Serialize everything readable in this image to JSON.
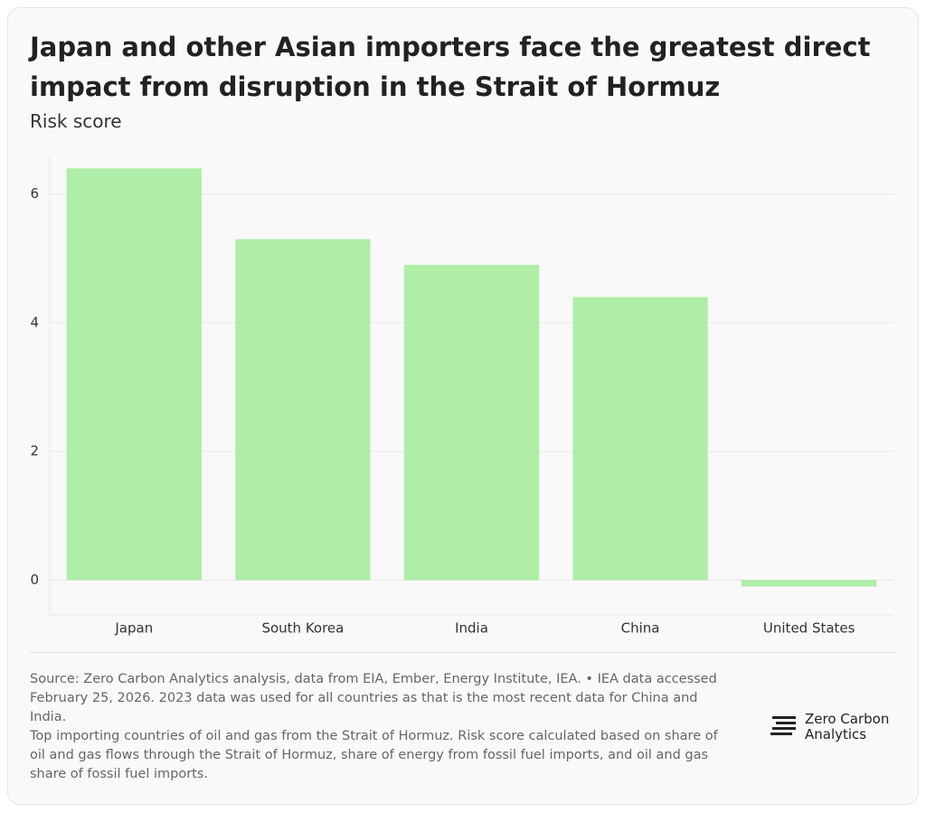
{
  "chart_data": {
    "type": "bar",
    "title": "Japan and other Asian importers face the greatest direct impact from disruption in the Strait of Hormuz",
    "subtitle": "Risk score",
    "categories": [
      "Japan",
      "South Korea",
      "India",
      "China",
      "United States"
    ],
    "values": [
      6.4,
      5.3,
      4.9,
      4.4,
      -0.1
    ],
    "color": "#aeeea6",
    "ylim": [
      -0.5,
      6.6
    ],
    "yticks": [
      0,
      2,
      4,
      6
    ],
    "grid": true,
    "source": "Source: Zero Carbon Analytics analysis, data from EIA, Ember, Energy Institute, IEA. • IEA data accessed February 25, 2026. 2023 data was used for all countries as that is the most recent data for China and India.",
    "note": "Top importing countries of oil and gas from the Strait of Hormuz. Risk score calculated based on share of oil and gas flows through the Strait of Hormuz, share of energy from fossil fuel imports, and oil and gas share of fossil fuel imports.",
    "logo": "Zero Carbon Analytics"
  }
}
